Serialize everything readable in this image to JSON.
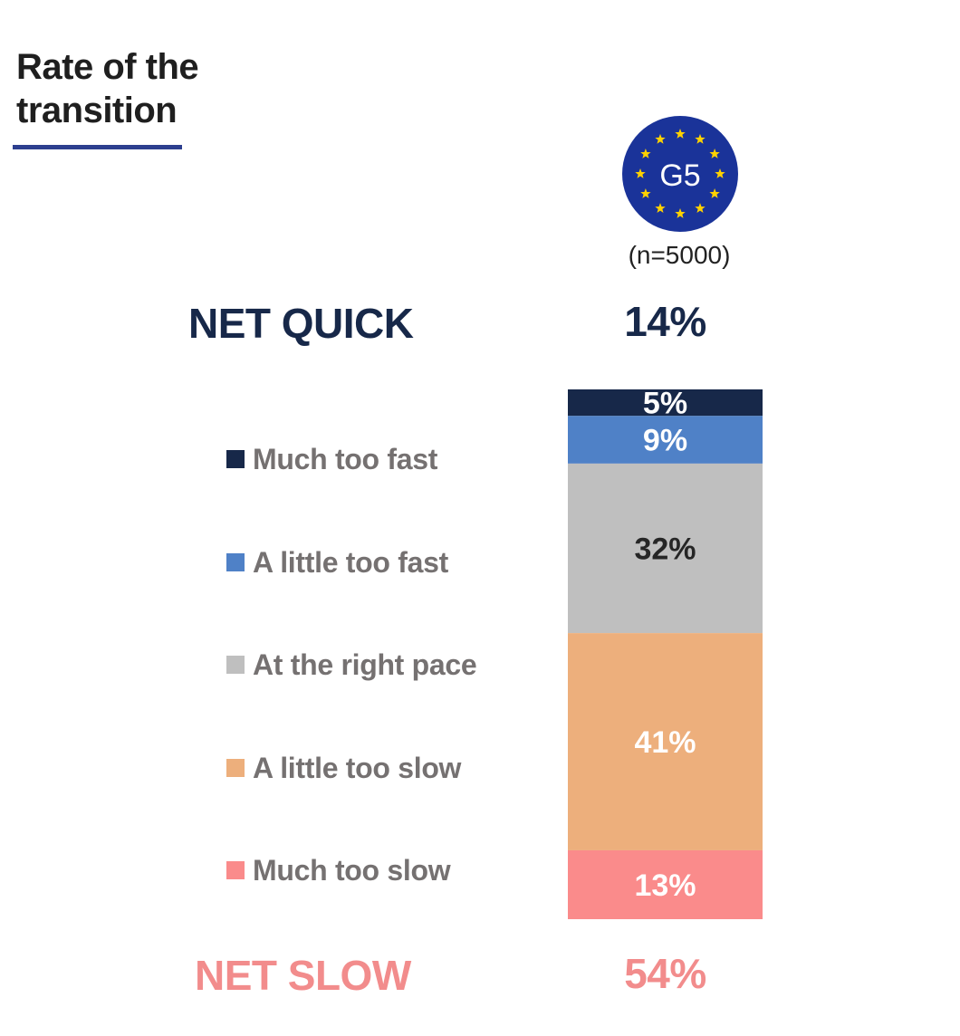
{
  "title": "Rate of the transition",
  "badge": {
    "text": "G5",
    "fill": "#1a3399",
    "star_color": "#ffd200"
  },
  "sample_size": "(n=5000)",
  "net_quick": {
    "label": "NET QUICK",
    "value": "14%",
    "color": "#172849"
  },
  "net_slow": {
    "label": "NET SLOW",
    "value": "54%",
    "color": "#f28c8c"
  },
  "chart_data": {
    "type": "bar",
    "stacked": true,
    "orientation": "vertical",
    "categories": [
      "G5"
    ],
    "series": [
      {
        "name": "Much too fast",
        "values": [
          5
        ],
        "label": "5%",
        "color": "#172849",
        "label_color": "#ffffff"
      },
      {
        "name": "A little too fast",
        "values": [
          9
        ],
        "label": "9%",
        "color": "#4f81c7",
        "label_color": "#ffffff"
      },
      {
        "name": "At the right pace",
        "values": [
          32
        ],
        "label": "32%",
        "color": "#bfbfbf",
        "label_color": "#262626"
      },
      {
        "name": "A little too slow",
        "values": [
          41
        ],
        "label": "41%",
        "color": "#edaf7c",
        "label_color": "#ffffff"
      },
      {
        "name": "Much too slow",
        "values": [
          13
        ],
        "label": "13%",
        "color": "#fa8b8b",
        "label_color": "#ffffff"
      }
    ],
    "legend_position": "left",
    "grid": false
  }
}
